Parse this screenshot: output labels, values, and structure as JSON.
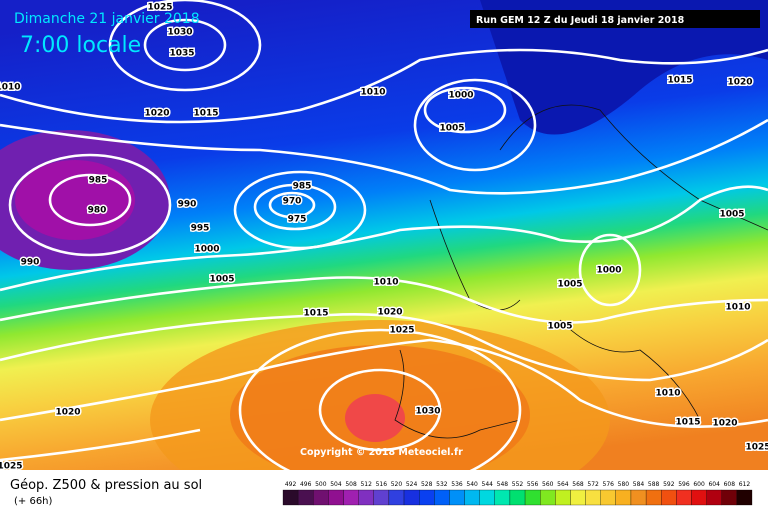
{
  "header": {
    "date": "Dimanche 21 janvier 2018",
    "time": "7:00 locale",
    "run": "Run GEM 12 Z du Jeudi 18 janvier 2018"
  },
  "isobar_labels": [
    1025,
    1030,
    1035,
    1010,
    1020,
    1015,
    1010,
    1000,
    1005,
    985,
    980,
    990,
    995,
    985,
    970,
    975,
    1000,
    1005,
    990,
    1010,
    1015,
    1020,
    1025,
    1020,
    1025,
    1030,
    1015,
    1020,
    1005,
    1000,
    1005,
    1005,
    1010,
    1010,
    1015,
    1020,
    1025
  ],
  "copyright": "Copyright © 2018 Meteociel.fr",
  "footer": {
    "title": "Géop. Z500 & pression au sol",
    "lead_time": "(+ 66h)"
  },
  "legend": {
    "values": [
      492,
      496,
      500,
      504,
      508,
      512,
      516,
      520,
      524,
      528,
      532,
      536,
      540,
      544,
      548,
      552,
      556,
      560,
      564,
      568,
      572,
      576,
      580,
      584,
      588,
      592,
      596,
      600,
      604,
      608,
      612
    ],
    "colors": [
      "#2a0a2a",
      "#4a1050",
      "#701070",
      "#901090",
      "#a020b0",
      "#8030c0",
      "#6040d0",
      "#3040e0",
      "#1830e0",
      "#0a40f0",
      "#0060f8",
      "#0090f8",
      "#00b8f0",
      "#00d8e0",
      "#00e8b0",
      "#00e070",
      "#30e030",
      "#80e820",
      "#c0f020",
      "#f0f040",
      "#f8e040",
      "#f8c830",
      "#f8b020",
      "#f09020",
      "#f07010",
      "#f05010",
      "#f03020",
      "#e01010",
      "#b00010",
      "#700008",
      "#200000"
    ]
  }
}
